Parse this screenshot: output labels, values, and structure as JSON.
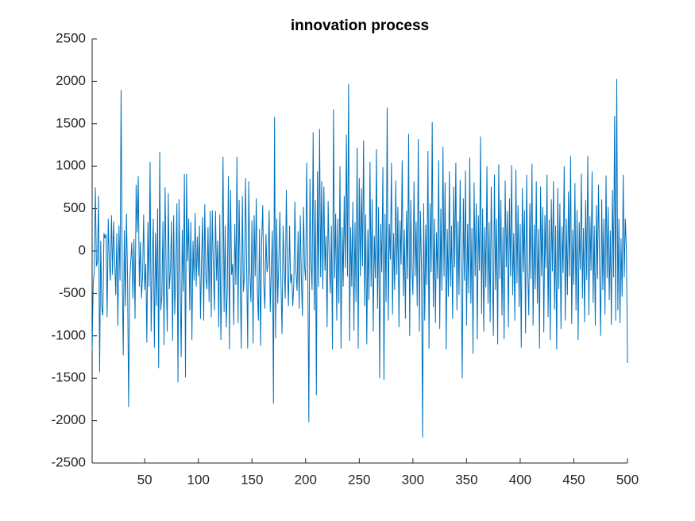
{
  "chart_data": {
    "type": "line",
    "title": "innovation process",
    "xlim": [
      1,
      500
    ],
    "xticks": [
      50,
      100,
      150,
      200,
      250,
      300,
      350,
      400,
      450,
      500
    ],
    "ylim": [
      -2500,
      2500
    ],
    "yticks": [
      -2500,
      -2000,
      -1500,
      -1000,
      -500,
      0,
      500,
      1000,
      1500,
      2000,
      2500
    ],
    "grid": false,
    "x": [
      1,
      2,
      3,
      4,
      5,
      6,
      7,
      8,
      9,
      10,
      11,
      12,
      13,
      14,
      15,
      16,
      17,
      18,
      19,
      20,
      21,
      22,
      23,
      24,
      25,
      26,
      27,
      28,
      29,
      30,
      31,
      32,
      33,
      34,
      35,
      36,
      37,
      38,
      39,
      40,
      41,
      42,
      43,
      44,
      45,
      46,
      47,
      48,
      49,
      50,
      51,
      52,
      53,
      54,
      55,
      56,
      57,
      58,
      59,
      60,
      61,
      62,
      63,
      64,
      65,
      66,
      67,
      68,
      69,
      70,
      71,
      72,
      73,
      74,
      75,
      76,
      77,
      78,
      79,
      80,
      81,
      82,
      83,
      84,
      85,
      86,
      87,
      88,
      89,
      90,
      91,
      92,
      93,
      94,
      95,
      96,
      97,
      98,
      99,
      100,
      101,
      102,
      103,
      104,
      105,
      106,
      107,
      108,
      109,
      110,
      111,
      112,
      113,
      114,
      115,
      116,
      117,
      118,
      119,
      120,
      121,
      122,
      123,
      124,
      125,
      126,
      127,
      128,
      129,
      130,
      131,
      132,
      133,
      134,
      135,
      136,
      137,
      138,
      139,
      140,
      141,
      142,
      143,
      144,
      145,
      146,
      147,
      148,
      149,
      150,
      151,
      152,
      153,
      154,
      155,
      156,
      157,
      158,
      159,
      160,
      161,
      162,
      163,
      164,
      165,
      166,
      167,
      168,
      169,
      170,
      171,
      172,
      173,
      174,
      175,
      176,
      177,
      178,
      179,
      180,
      181,
      182,
      183,
      184,
      185,
      186,
      187,
      188,
      189,
      190,
      191,
      192,
      193,
      194,
      195,
      196,
      197,
      198,
      199,
      200,
      201,
      202,
      203,
      204,
      205,
      206,
      207,
      208,
      209,
      210,
      211,
      212,
      213,
      214,
      215,
      216,
      217,
      218,
      219,
      220,
      221,
      222,
      223,
      224,
      225,
      226,
      227,
      228,
      229,
      230,
      231,
      232,
      233,
      234,
      235,
      236,
      237,
      238,
      239,
      240,
      241,
      242,
      243,
      244,
      245,
      246,
      247,
      248,
      249,
      250,
      251,
      252,
      253,
      254,
      255,
      256,
      257,
      258,
      259,
      260,
      261,
      262,
      263,
      264,
      265,
      266,
      267,
      268,
      269,
      270,
      271,
      272,
      273,
      274,
      275,
      276,
      277,
      278,
      279,
      280,
      281,
      282,
      283,
      284,
      285,
      286,
      287,
      288,
      289,
      290,
      291,
      292,
      293,
      294,
      295,
      296,
      297,
      298,
      299,
      300,
      301,
      302,
      303,
      304,
      305,
      306,
      307,
      308,
      309,
      310,
      311,
      312,
      313,
      314,
      315,
      316,
      317,
      318,
      319,
      320,
      321,
      322,
      323,
      324,
      325,
      326,
      327,
      328,
      329,
      330,
      331,
      332,
      333,
      334,
      335,
      336,
      337,
      338,
      339,
      340,
      341,
      342,
      343,
      344,
      345,
      346,
      347,
      348,
      349,
      350,
      351,
      352,
      353,
      354,
      355,
      356,
      357,
      358,
      359,
      360,
      361,
      362,
      363,
      364,
      365,
      366,
      367,
      368,
      369,
      370,
      371,
      372,
      373,
      374,
      375,
      376,
      377,
      378,
      379,
      380,
      381,
      382,
      383,
      384,
      385,
      386,
      387,
      388,
      389,
      390,
      391,
      392,
      393,
      394,
      395,
      396,
      397,
      398,
      399,
      400,
      401,
      402,
      403,
      404,
      405,
      406,
      407,
      408,
      409,
      410,
      411,
      412,
      413,
      414,
      415,
      416,
      417,
      418,
      419,
      420,
      421,
      422,
      423,
      424,
      425,
      426,
      427,
      428,
      429,
      430,
      431,
      432,
      433,
      434,
      435,
      436,
      437,
      438,
      439,
      440,
      441,
      442,
      443,
      444,
      445,
      446,
      447,
      448,
      449,
      450,
      451,
      452,
      453,
      454,
      455,
      456,
      457,
      458,
      459,
      460,
      461,
      462,
      463,
      464,
      465,
      466,
      467,
      468,
      469,
      470,
      471,
      472,
      473,
      474,
      475,
      476,
      477,
      478,
      479,
      480,
      481,
      482,
      483,
      484,
      485,
      486,
      487,
      488,
      489,
      490,
      491,
      492,
      493,
      494,
      495,
      496,
      497,
      498,
      499,
      500
    ],
    "series": [
      {
        "color": "#0072bd",
        "values": [
          -1170,
          -380,
          -250,
          750,
          -180,
          -120,
          650,
          -1430,
          120,
          -680,
          -760,
          210,
          150,
          200,
          -780,
          380,
          -120,
          -350,
          420,
          -280,
          350,
          -100,
          -520,
          210,
          -880,
          300,
          -350,
          1900,
          -180,
          -1230,
          240,
          -650,
          440,
          -300,
          -1840,
          -380,
          -120,
          100,
          -560,
          140,
          -800,
          780,
          220,
          880,
          -420,
          110,
          -560,
          -300,
          430,
          -460,
          -150,
          -1080,
          340,
          -420,
          1050,
          -950,
          -180,
          380,
          -1140,
          210,
          -650,
          500,
          -1380,
          1170,
          -700,
          -520,
          350,
          -1110,
          750,
          -260,
          -950,
          680,
          -450,
          -220,
          350,
          -1060,
          420,
          -750,
          -180,
          560,
          -1550,
          610,
          -340,
          -1250,
          250,
          -480,
          910,
          -1490,
          910,
          -120,
          380,
          -700,
          340,
          -1050,
          120,
          -350,
          450,
          -420,
          170,
          -300,
          300,
          -800,
          -100,
          400,
          -820,
          550,
          -300,
          -450,
          280,
          -600,
          470,
          -780,
          480,
          -200,
          -700,
          470,
          -350,
          120,
          -900,
          430,
          -1050,
          -300,
          1110,
          -720,
          300,
          -900,
          -450,
          880,
          -1160,
          720,
          -280,
          -150,
          -870,
          320,
          -400,
          1110,
          -850,
          600,
          -300,
          -1150,
          650,
          -480,
          -300,
          860,
          -180,
          -1150,
          820,
          -250,
          -600,
          360,
          -1090,
          420,
          -300,
          620,
          -470,
          -820,
          260,
          -1120,
          100,
          540,
          -390,
          -680,
          200,
          -250,
          -150,
          480,
          -720,
          -230,
          240,
          -1800,
          1580,
          -1030,
          380,
          -620,
          -130,
          460,
          -350,
          -980,
          300,
          -180,
          -560,
          720,
          -200,
          -650,
          300,
          -380,
          -270,
          -650,
          -390,
          580,
          -240,
          -470,
          230,
          -680,
          420,
          -300,
          -770,
          520,
          -180,
          -350,
          1040,
          -220,
          -2020,
          850,
          -110,
          -460,
          1400,
          -700,
          600,
          -1700,
          940,
          -420,
          1440,
          -310,
          820,
          -450,
          760,
          -230,
          180,
          -900,
          590,
          -100,
          -500,
          300,
          -1160,
          1670,
          -320,
          440,
          -820,
          380,
          -620,
          1000,
          -1150,
          280,
          -420,
          650,
          -200,
          1370,
          -300,
          1970,
          -1060,
          280,
          -420,
          580,
          -940,
          340,
          -600,
          1220,
          -1150,
          860,
          -300,
          740,
          -180,
          1300,
          -650,
          430,
          -1100,
          250,
          -580,
          1050,
          -420,
          610,
          -950,
          180,
          -320,
          1200,
          -680,
          520,
          -1500,
          320,
          -250,
          990,
          -1520,
          440,
          -600,
          1690,
          -820,
          320,
          -100,
          1040,
          -750,
          210,
          -460,
          830,
          -280,
          520,
          -900,
          360,
          -160,
          1070,
          -530,
          250,
          -800,
          470,
          -330,
          1380,
          -1000,
          600,
          -200,
          -520,
          820,
          -300,
          350,
          -650,
          1320,
          -950,
          470,
          -200,
          -2200,
          560,
          -820,
          310,
          -400,
          1180,
          -1150,
          560,
          -250,
          1520,
          -660,
          380,
          -850,
          220,
          -330,
          1070,
          -920,
          500,
          -470,
          1230,
          -300,
          810,
          -1160,
          260,
          -540,
          940,
          -420,
          300,
          -800,
          760,
          -190,
          1040,
          -700,
          350,
          -520,
          840,
          -260,
          -1500,
          620,
          -350,
          950,
          -880,
          320,
          -500,
          1100,
          -620,
          270,
          -1210,
          810,
          -300,
          560,
          -1040,
          420,
          -230,
          1350,
          -740,
          500,
          -950,
          280,
          -430,
          1000,
          -620,
          340,
          -840,
          760,
          -150,
          -1000,
          900,
          -460,
          380,
          -1100,
          1020,
          -330,
          600,
          -760,
          280,
          -1040,
          830,
          -190,
          470,
          -900,
          620,
          -300,
          1010,
          -520,
          210,
          -820,
          960,
          -380,
          540,
          -660,
          320,
          -1140,
          740,
          -250,
          480,
          -970,
          900,
          -210,
          -760,
          560,
          -330,
          1030,
          -880,
          310,
          -450,
          820,
          -620,
          260,
          -1150,
          760,
          -300,
          520,
          -960,
          420,
          -200,
          900,
          -780,
          370,
          -1050,
          610,
          -240,
          820,
          -690,
          300,
          -1160,
          740,
          -450,
          560,
          -920,
          290,
          -260,
          1000,
          -820,
          380,
          -520,
          700,
          -300,
          1120,
          -860,
          250,
          -400,
          800,
          -700,
          480,
          -1050,
          340,
          -220,
          910,
          -560,
          270,
          -840,
          600,
          -340,
          1120,
          -760,
          410,
          -230,
          940,
          -610,
          300,
          -880,
          540,
          -330,
          780,
          -200,
          -1000,
          610,
          -460,
          380,
          -750,
          890,
          -320,
          520,
          -580,
          240,
          -870,
          720,
          -310,
          1590,
          -820,
          2030,
          -700,
          380,
          -850,
          150,
          -540,
          900,
          -310,
          380,
          20,
          -1320
        ]
      }
    ]
  }
}
